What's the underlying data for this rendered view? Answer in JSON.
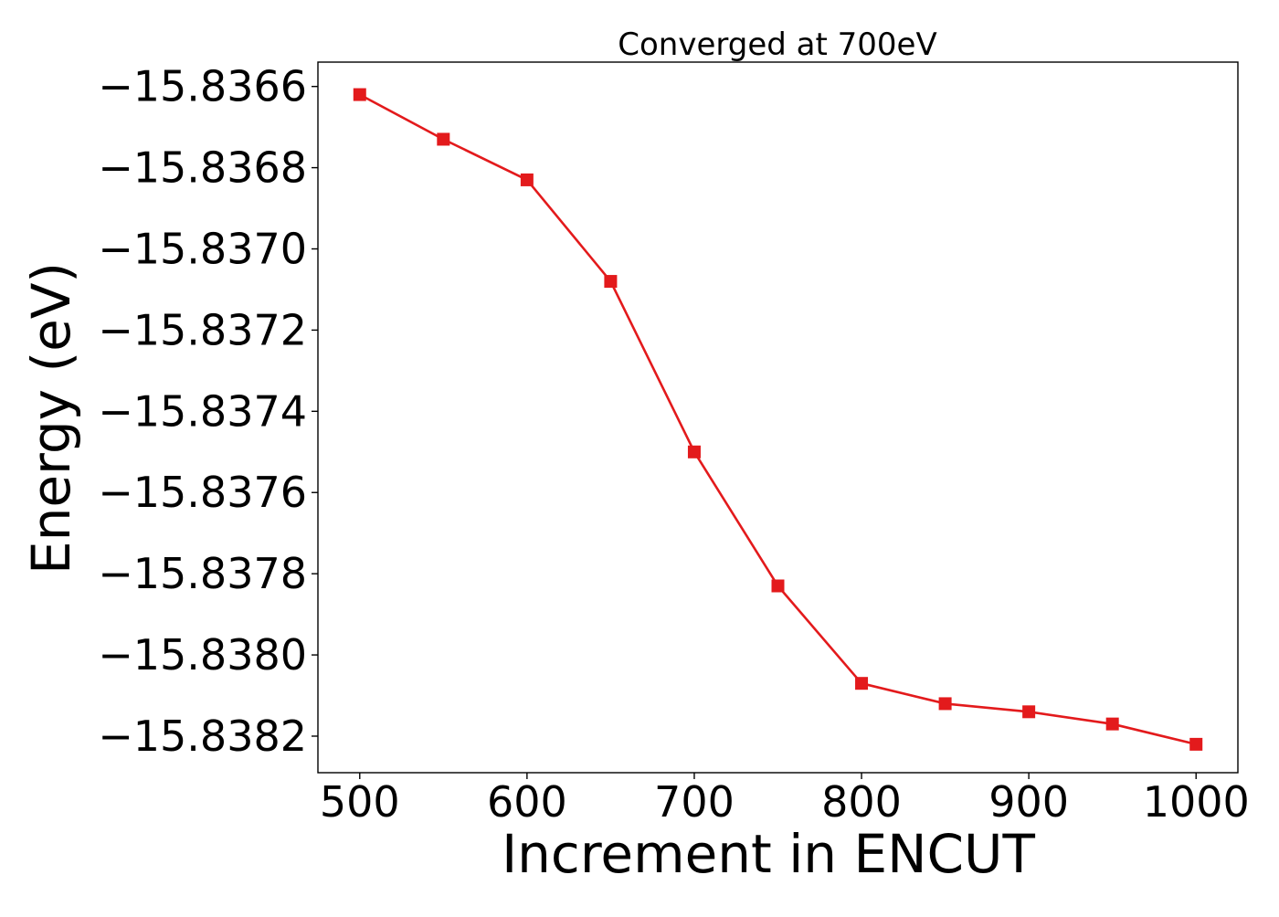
{
  "chart_data": {
    "type": "line",
    "title": "Converged at 700eV",
    "xlabel": "Increment in ENCUT",
    "ylabel": "Energy (eV)",
    "xlim": [
      475,
      1025
    ],
    "ylim": [
      -15.83829,
      -15.83654
    ],
    "x_ticks": [
      500,
      600,
      700,
      800,
      900,
      1000
    ],
    "x_tick_labels": [
      "500",
      "600",
      "700",
      "800",
      "900",
      "1000"
    ],
    "y_ticks": [
      -15.8366,
      -15.8368,
      -15.837,
      -15.8372,
      -15.8374,
      -15.8376,
      -15.8378,
      -15.838,
      -15.8382
    ],
    "y_tick_labels": [
      "−15.8366",
      "−15.8368",
      "−15.8370",
      "−15.8372",
      "−15.8374",
      "−15.8376",
      "−15.8378",
      "−15.8380",
      "−15.8382"
    ],
    "grid": false,
    "legend": "none",
    "series": [
      {
        "marker": "square",
        "color": "#e31a1c",
        "x": [
          500,
          550,
          600,
          650,
          700,
          750,
          800,
          850,
          900,
          950,
          1000
        ],
        "y": [
          -15.83662,
          -15.83673,
          -15.83683,
          -15.83708,
          -15.8375,
          -15.83783,
          -15.83807,
          -15.83812,
          -15.83814,
          -15.83817,
          -15.83822
        ]
      }
    ]
  }
}
